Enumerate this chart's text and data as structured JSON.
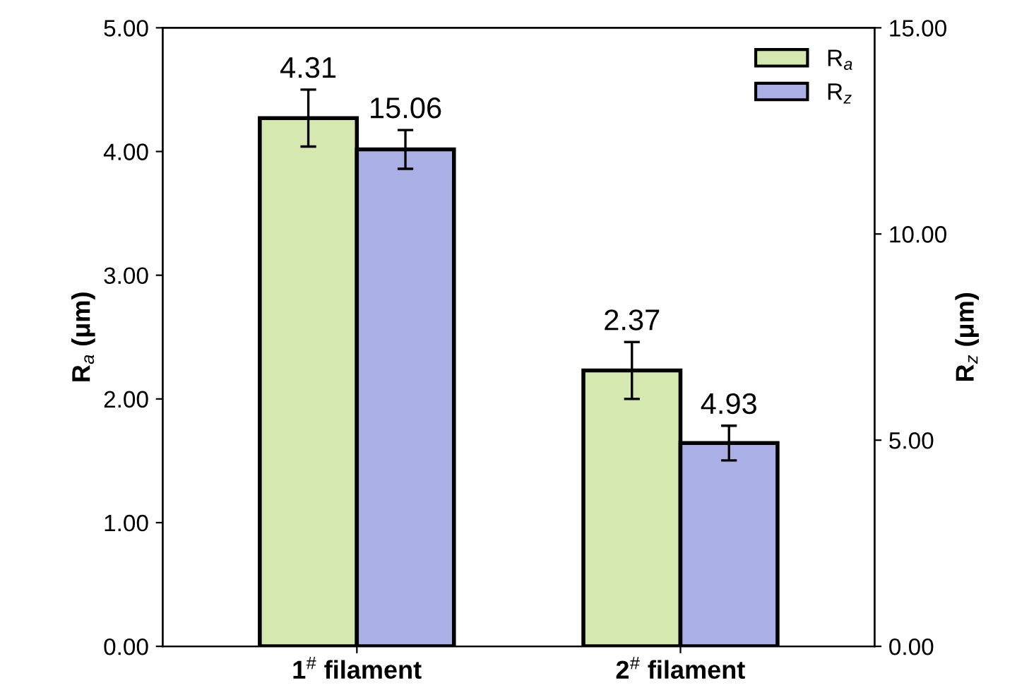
{
  "chart_data": {
    "type": "bar",
    "categories": [
      "1$^{#}$ filament",
      "2$^{#}$ filament"
    ],
    "ylabel": "R$_{a}$ (μm)",
    "y2label": "R$_{z}$ (μm)",
    "series": [
      {
        "name": "R$_{a}$",
        "color": "#d4e8b0",
        "values": [
          4.27,
          2.23
        ],
        "errors": [
          0.23,
          0.23
        ]
      },
      {
        "name": "R$_{z}$",
        "color": "#aab0e6",
        "axis": "y2",
        "values": [
          12.05,
          4.93
        ],
        "errors": [
          0.47,
          0.42
        ]
      }
    ],
    "annotations": [
      "4.31",
      "15.06",
      "2.37",
      "4.93"
    ],
    "ylim": [
      0,
      5
    ],
    "yticks": [
      {
        "value": 0,
        "label": "0.00"
      },
      {
        "value": 1,
        "label": "1.00"
      },
      {
        "value": 2,
        "label": "2.00"
      },
      {
        "value": 3,
        "label": "3.00"
      },
      {
        "value": 4,
        "label": "4.00"
      },
      {
        "value": 5,
        "label": "5.00"
      }
    ],
    "y2lim": [
      0,
      15
    ],
    "y2ticks": [
      {
        "value": 0,
        "label": "0.00"
      },
      {
        "value": 5,
        "label": "5.00"
      },
      {
        "value": 10,
        "label": "10.00"
      },
      {
        "value": 15,
        "label": "15.00"
      }
    ],
    "legend": "top right",
    "grid": false
  }
}
